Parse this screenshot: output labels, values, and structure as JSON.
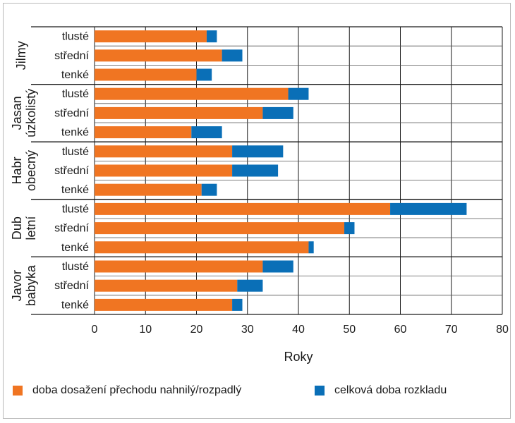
{
  "chart_data": {
    "type": "bar",
    "orientation": "horizontal",
    "stacked": true,
    "xlabel": "Roky",
    "xlim": [
      0,
      80
    ],
    "xticks": [
      0,
      10,
      20,
      30,
      40,
      50,
      60,
      70,
      80
    ],
    "grid": true,
    "legend_placement": "bottom",
    "colors": {
      "transition": "#f07522",
      "decomposition": "#0a6fb7"
    },
    "series": [
      {
        "name": "doba dosažení přechodu nahnilý/rozpadlý",
        "key": "transition"
      },
      {
        "name": "celková doba rozkladu",
        "key": "total"
      }
    ],
    "groups": [
      {
        "name_lines": [
          "Jilmy"
        ],
        "items": [
          {
            "label": "tlusté",
            "transition": 22,
            "total": 24
          },
          {
            "label": "střední",
            "transition": 25,
            "total": 29
          },
          {
            "label": "tenké",
            "transition": 20,
            "total": 23
          }
        ]
      },
      {
        "name_lines": [
          "Jasan",
          "úzkolistý"
        ],
        "items": [
          {
            "label": "tlusté",
            "transition": 38,
            "total": 42
          },
          {
            "label": "střední",
            "transition": 33,
            "total": 39
          },
          {
            "label": "tenké",
            "transition": 19,
            "total": 25
          }
        ]
      },
      {
        "name_lines": [
          "Habr",
          "obecný"
        ],
        "items": [
          {
            "label": "tlusté",
            "transition": 27,
            "total": 37
          },
          {
            "label": "střední",
            "transition": 27,
            "total": 36
          },
          {
            "label": "tenké",
            "transition": 21,
            "total": 24
          }
        ]
      },
      {
        "name_lines": [
          "Dub",
          "letní"
        ],
        "items": [
          {
            "label": "tlusté",
            "transition": 58,
            "total": 73
          },
          {
            "label": "střední",
            "transition": 49,
            "total": 51
          },
          {
            "label": "tenké",
            "transition": 42,
            "total": 43
          }
        ]
      },
      {
        "name_lines": [
          "Javor",
          "babyka"
        ],
        "items": [
          {
            "label": "tlusté",
            "transition": 33,
            "total": 39
          },
          {
            "label": "střední",
            "transition": 28,
            "total": 33
          },
          {
            "label": "tenké",
            "transition": 27,
            "total": 29
          }
        ]
      }
    ]
  }
}
